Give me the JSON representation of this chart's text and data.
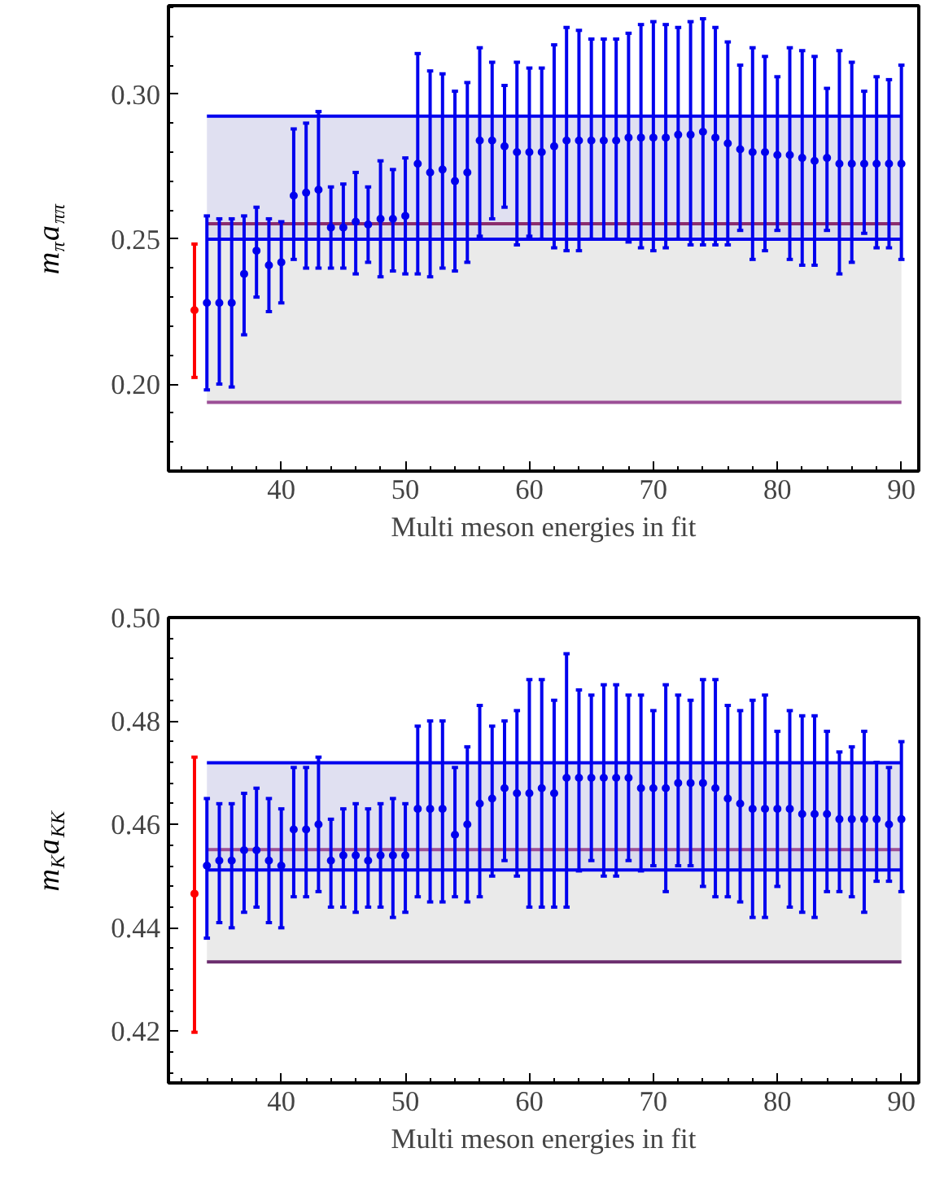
{
  "chart_data": [
    {
      "type": "scatter",
      "xlabel": "Multi meson energies in fit",
      "ylabel": "m$_{π}$a$_{ππ}$",
      "xlim": [
        30.9,
        91.4
      ],
      "ylim": [
        0.17,
        0.3305
      ],
      "xticks": [
        40,
        50,
        60,
        70,
        80,
        90
      ],
      "yticks": [
        {
          "value": 0.2,
          "label": "0.20"
        },
        0.25,
        {
          "value": 0.3,
          "label": "0.30"
        }
      ],
      "grid": false,
      "marker": "circle",
      "bands": [
        {
          "axis": "y",
          "from": 0.1937,
          "to": 0.2553,
          "color": "#e3e3e3"
        },
        {
          "axis": "y",
          "from": 0.25,
          "to": 0.2924,
          "color": "#d6d6ec"
        }
      ],
      "ref_lines": [
        {
          "axis": "y",
          "value": 0.1937,
          "color": "#9b4f96"
        },
        {
          "axis": "y",
          "value": 0.2553,
          "color": "#8b2d6e"
        },
        {
          "axis": "y",
          "value": 0.25,
          "color": "#0000ee"
        },
        {
          "axis": "y",
          "value": 0.2924,
          "color": "#0000ee"
        }
      ],
      "series": [
        {
          "color": "#0000ee",
          "x": [
            34,
            35,
            36,
            37,
            38,
            39,
            40,
            41,
            42,
            43,
            44,
            45,
            46,
            47,
            48,
            49,
            50,
            51,
            52,
            53,
            54,
            55,
            56,
            57,
            58,
            59,
            60,
            61,
            62,
            63,
            64,
            65,
            66,
            67,
            68,
            69,
            70,
            71,
            72,
            73,
            74,
            75,
            76,
            77,
            78,
            79,
            80,
            81,
            82,
            83,
            84,
            85,
            86,
            87,
            88,
            89,
            90
          ],
          "values": [
            0.228,
            0.228,
            0.228,
            0.238,
            0.246,
            0.241,
            0.242,
            0.265,
            0.266,
            0.267,
            0.254,
            0.254,
            0.256,
            0.255,
            0.257,
            0.257,
            0.258,
            0.276,
            0.273,
            0.274,
            0.27,
            0.273,
            0.284,
            0.284,
            0.282,
            0.28,
            0.28,
            0.28,
            0.282,
            0.284,
            0.284,
            0.284,
            0.284,
            0.284,
            0.285,
            0.285,
            0.285,
            0.285,
            0.286,
            0.286,
            0.287,
            0.285,
            0.283,
            0.281,
            0.28,
            0.28,
            0.279,
            0.279,
            0.278,
            0.277,
            0.278,
            0.276,
            0.276,
            0.276,
            0.276,
            0.276,
            0.276
          ],
          "errors": [
            [
              0.198,
              0.258
            ],
            [
              0.2,
              0.257
            ],
            [
              0.199,
              0.257
            ],
            [
              0.217,
              0.258
            ],
            [
              0.23,
              0.261
            ],
            [
              0.225,
              0.257
            ],
            [
              0.228,
              0.256
            ],
            [
              0.243,
              0.288
            ],
            [
              0.24,
              0.29
            ],
            [
              0.24,
              0.294
            ],
            [
              0.24,
              0.268
            ],
            [
              0.24,
              0.269
            ],
            [
              0.238,
              0.273
            ],
            [
              0.242,
              0.268
            ],
            [
              0.237,
              0.277
            ],
            [
              0.239,
              0.274
            ],
            [
              0.238,
              0.278
            ],
            [
              0.238,
              0.314
            ],
            [
              0.237,
              0.308
            ],
            [
              0.24,
              0.307
            ],
            [
              0.239,
              0.301
            ],
            [
              0.242,
              0.304
            ],
            [
              0.251,
              0.316
            ],
            [
              0.257,
              0.311
            ],
            [
              0.261,
              0.303
            ],
            [
              0.248,
              0.311
            ],
            [
              0.251,
              0.309
            ],
            [
              0.25,
              0.309
            ],
            [
              0.247,
              0.317
            ],
            [
              0.246,
              0.323
            ],
            [
              0.246,
              0.322
            ],
            [
              0.25,
              0.319
            ],
            [
              0.25,
              0.319
            ],
            [
              0.25,
              0.319
            ],
            [
              0.249,
              0.321
            ],
            [
              0.247,
              0.324
            ],
            [
              0.246,
              0.325
            ],
            [
              0.247,
              0.324
            ],
            [
              0.25,
              0.323
            ],
            [
              0.248,
              0.325
            ],
            [
              0.248,
              0.326
            ],
            [
              0.248,
              0.323
            ],
            [
              0.248,
              0.318
            ],
            [
              0.253,
              0.31
            ],
            [
              0.243,
              0.316
            ],
            [
              0.246,
              0.313
            ],
            [
              0.253,
              0.306
            ],
            [
              0.243,
              0.316
            ],
            [
              0.241,
              0.315
            ],
            [
              0.241,
              0.313
            ],
            [
              0.253,
              0.302
            ],
            [
              0.238,
              0.315
            ],
            [
              0.242,
              0.311
            ],
            [
              0.252,
              0.301
            ],
            [
              0.247,
              0.306
            ],
            [
              0.247,
              0.305
            ],
            [
              0.243,
              0.31
            ]
          ]
        },
        {
          "color": "#ff0000",
          "x": [
            33
          ],
          "values": [
            0.2255
          ],
          "errors": [
            [
              0.2023,
              0.2483
            ]
          ]
        }
      ]
    },
    {
      "type": "scatter",
      "xlabel": "Multi meson energies in fit",
      "ylabel": "m$_{K}$a$_{KK}$",
      "xlim": [
        30.9,
        91.4
      ],
      "ylim": [
        0.41,
        0.5
      ],
      "xticks": [
        40,
        50,
        60,
        70,
        80,
        90
      ],
      "yticks": [
        0.42,
        0.44,
        0.46,
        0.48,
        {
          "value": 0.5,
          "label": "0.50"
        }
      ],
      "grid": false,
      "marker": "circle",
      "bands": [
        {
          "axis": "y",
          "from": 0.4334,
          "to": 0.4551,
          "color": "#e3e3e3"
        },
        {
          "axis": "y",
          "from": 0.4512,
          "to": 0.4719,
          "color": "#d6d6ec"
        }
      ],
      "ref_lines": [
        {
          "axis": "y",
          "value": 0.4334,
          "color": "#6b2d6e"
        },
        {
          "axis": "y",
          "value": 0.4551,
          "color": "#9b4f96"
        },
        {
          "axis": "y",
          "value": 0.4512,
          "color": "#0000ee"
        },
        {
          "axis": "y",
          "value": 0.4719,
          "color": "#0000ee"
        }
      ],
      "series": [
        {
          "color": "#0000ee",
          "x": [
            34,
            35,
            36,
            37,
            38,
            39,
            40,
            41,
            42,
            43,
            44,
            45,
            46,
            47,
            48,
            49,
            50,
            51,
            52,
            53,
            54,
            55,
            56,
            57,
            58,
            59,
            60,
            61,
            62,
            63,
            64,
            65,
            66,
            67,
            68,
            69,
            70,
            71,
            72,
            73,
            74,
            75,
            76,
            77,
            78,
            79,
            80,
            81,
            82,
            83,
            84,
            85,
            86,
            87,
            88,
            89,
            90
          ],
          "values": [
            0.452,
            0.453,
            0.453,
            0.455,
            0.455,
            0.453,
            0.452,
            0.459,
            0.459,
            0.46,
            0.453,
            0.454,
            0.454,
            0.453,
            0.454,
            0.454,
            0.454,
            0.463,
            0.463,
            0.463,
            0.458,
            0.46,
            0.464,
            0.465,
            0.467,
            0.466,
            0.466,
            0.467,
            0.466,
            0.469,
            0.469,
            0.469,
            0.469,
            0.469,
            0.469,
            0.467,
            0.467,
            0.467,
            0.468,
            0.468,
            0.468,
            0.467,
            0.465,
            0.464,
            0.463,
            0.463,
            0.463,
            0.463,
            0.462,
            0.462,
            0.462,
            0.461,
            0.461,
            0.461,
            0.461,
            0.46,
            0.461
          ],
          "errors": [
            [
              0.438,
              0.465
            ],
            [
              0.441,
              0.464
            ],
            [
              0.44,
              0.464
            ],
            [
              0.443,
              0.466
            ],
            [
              0.444,
              0.467
            ],
            [
              0.441,
              0.465
            ],
            [
              0.44,
              0.463
            ],
            [
              0.446,
              0.471
            ],
            [
              0.446,
              0.471
            ],
            [
              0.447,
              0.473
            ],
            [
              0.444,
              0.461
            ],
            [
              0.444,
              0.463
            ],
            [
              0.443,
              0.464
            ],
            [
              0.444,
              0.463
            ],
            [
              0.444,
              0.464
            ],
            [
              0.442,
              0.465
            ],
            [
              0.443,
              0.464
            ],
            [
              0.446,
              0.479
            ],
            [
              0.445,
              0.48
            ],
            [
              0.445,
              0.48
            ],
            [
              0.446,
              0.471
            ],
            [
              0.445,
              0.475
            ],
            [
              0.446,
              0.483
            ],
            [
              0.45,
              0.479
            ],
            [
              0.453,
              0.48
            ],
            [
              0.45,
              0.482
            ],
            [
              0.444,
              0.488
            ],
            [
              0.444,
              0.488
            ],
            [
              0.444,
              0.484
            ],
            [
              0.444,
              0.493
            ],
            [
              0.451,
              0.486
            ],
            [
              0.453,
              0.485
            ],
            [
              0.45,
              0.487
            ],
            [
              0.45,
              0.487
            ],
            [
              0.453,
              0.485
            ],
            [
              0.451,
              0.485
            ],
            [
              0.452,
              0.482
            ],
            [
              0.447,
              0.487
            ],
            [
              0.452,
              0.485
            ],
            [
              0.452,
              0.484
            ],
            [
              0.448,
              0.488
            ],
            [
              0.446,
              0.488
            ],
            [
              0.446,
              0.483
            ],
            [
              0.445,
              0.482
            ],
            [
              0.442,
              0.484
            ],
            [
              0.442,
              0.485
            ],
            [
              0.448,
              0.478
            ],
            [
              0.444,
              0.482
            ],
            [
              0.443,
              0.481
            ],
            [
              0.442,
              0.481
            ],
            [
              0.447,
              0.478
            ],
            [
              0.447,
              0.474
            ],
            [
              0.446,
              0.475
            ],
            [
              0.443,
              0.478
            ],
            [
              0.449,
              0.472
            ],
            [
              0.449,
              0.471
            ],
            [
              0.447,
              0.476
            ]
          ]
        },
        {
          "color": "#ff0000",
          "x": [
            33
          ],
          "values": [
            0.4466
          ],
          "errors": [
            [
              0.4198,
              0.473
            ]
          ]
        }
      ]
    }
  ]
}
